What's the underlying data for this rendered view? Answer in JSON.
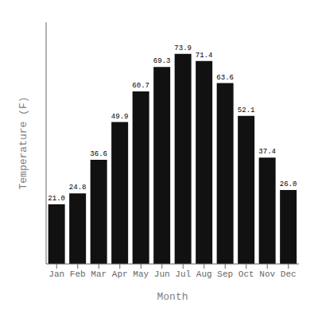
{
  "chart_data": {
    "type": "bar",
    "categories": [
      "Jan",
      "Feb",
      "Mar",
      "Apr",
      "May",
      "Jun",
      "Jul",
      "Aug",
      "Sep",
      "Oct",
      "Nov",
      "Dec"
    ],
    "values": [
      21.0,
      24.8,
      36.6,
      49.9,
      60.7,
      69.3,
      73.9,
      71.4,
      63.6,
      52.1,
      37.4,
      26.0
    ],
    "value_labels": [
      "21.0",
      "24.8",
      "36.6",
      "49.9",
      "60.7",
      "69.3",
      "73.9",
      "71.4",
      "63.6",
      "52.1",
      "37.4",
      "26.0"
    ],
    "color": "#111111",
    "xlabel": "Month",
    "ylabel": "Temperature (F)",
    "ylim": [
      0,
      85
    ],
    "grid": false,
    "data_labels": true,
    "tick_labels": "x"
  }
}
